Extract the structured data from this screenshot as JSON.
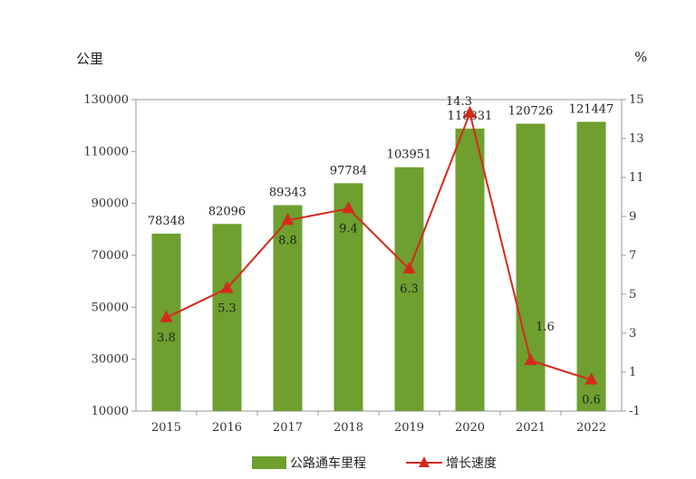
{
  "chart_data": {
    "type": "bar",
    "categories": [
      "2015",
      "2016",
      "2017",
      "2018",
      "2019",
      "2020",
      "2021",
      "2022"
    ],
    "series": [
      {
        "name": "公路通车里程",
        "type": "bar",
        "axis": "left",
        "values": [
          78348,
          82096,
          89343,
          97784,
          103951,
          118831,
          120726,
          121447
        ],
        "labels": [
          "78348",
          "82096",
          "89343",
          "97784",
          "103951",
          "118831",
          "120726",
          "121447"
        ],
        "color": "#6e9f2f"
      },
      {
        "name": "增长速度",
        "type": "line",
        "axis": "right",
        "values": [
          3.8,
          5.3,
          8.8,
          9.4,
          6.3,
          14.3,
          1.6,
          0.6
        ],
        "labels": [
          "3.8",
          "5.3",
          "8.8",
          "9.4",
          "6.3",
          "14.3",
          "1.6",
          "0.6"
        ],
        "color": "#d42a1c",
        "marker": "triangle"
      }
    ],
    "left_axis": {
      "unit": "公里",
      "ylim": [
        10000,
        130000
      ],
      "ticks": [
        "10000",
        "30000",
        "50000",
        "70000",
        "90000",
        "110000",
        "130000"
      ],
      "tick_values": [
        10000,
        30000,
        50000,
        70000,
        90000,
        110000,
        130000
      ]
    },
    "right_axis": {
      "unit": "%",
      "ylim": [
        -1,
        15
      ],
      "ticks": [
        "-1",
        "1",
        "3",
        "5",
        "7",
        "9",
        "11",
        "13",
        "15"
      ],
      "tick_values": [
        -1,
        1,
        3,
        5,
        7,
        9,
        11,
        13,
        15
      ]
    },
    "grid": false,
    "legend_position": "bottom"
  }
}
